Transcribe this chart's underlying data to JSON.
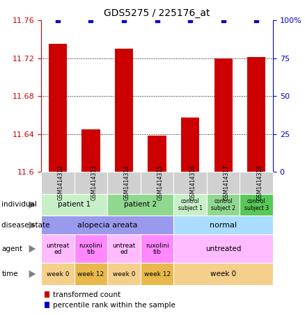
{
  "title": "GDS5275 / 225176_at",
  "samples": [
    "GSM1414312",
    "GSM1414313",
    "GSM1414314",
    "GSM1414315",
    "GSM1414316",
    "GSM1414317",
    "GSM1414318"
  ],
  "red_values": [
    11.735,
    11.645,
    11.73,
    11.638,
    11.657,
    11.72,
    11.721
  ],
  "blue_values": [
    100,
    100,
    100,
    100,
    100,
    100,
    100
  ],
  "ylim_left": [
    11.6,
    11.76
  ],
  "ylim_right": [
    0,
    100
  ],
  "yticks_left": [
    11.6,
    11.64,
    11.68,
    11.72,
    11.76
  ],
  "yticks_right": [
    0,
    25,
    50,
    75,
    100
  ],
  "ytick_labels_right": [
    "0",
    "25",
    "50",
    "75",
    "100%"
  ],
  "bar_color": "#cc0000",
  "dot_color": "#0000cc",
  "grid_values": [
    11.64,
    11.68,
    11.72
  ],
  "individual_data": [
    {
      "label": "patient 1",
      "span": [
        0,
        2
      ],
      "color": "#c8f0c8"
    },
    {
      "label": "patient 2",
      "span": [
        2,
        4
      ],
      "color": "#90d890"
    },
    {
      "label": "control\nsubject 1",
      "span": [
        4,
        5
      ],
      "color": "#c8f0c8"
    },
    {
      "label": "control\nsubject 2",
      "span": [
        5,
        6
      ],
      "color": "#90d890"
    },
    {
      "label": "control\nsubject 3",
      "span": [
        6,
        7
      ],
      "color": "#58c858"
    }
  ],
  "disease_data": [
    {
      "label": "alopecia areata",
      "span": [
        0,
        4
      ],
      "color": "#9999ee"
    },
    {
      "label": "normal",
      "span": [
        4,
        7
      ],
      "color": "#aaddff"
    }
  ],
  "agent_data": [
    {
      "label": "untreat\ned",
      "span": [
        0,
        1
      ],
      "color": "#ffbbff"
    },
    {
      "label": "ruxolini\ntib",
      "span": [
        1,
        2
      ],
      "color": "#ff88ff"
    },
    {
      "label": "untreat\ned",
      "span": [
        2,
        3
      ],
      "color": "#ffbbff"
    },
    {
      "label": "ruxolini\ntib",
      "span": [
        3,
        4
      ],
      "color": "#ff88ff"
    },
    {
      "label": "untreated",
      "span": [
        4,
        7
      ],
      "color": "#ffbbff"
    }
  ],
  "time_data": [
    {
      "label": "week 0",
      "span": [
        0,
        1
      ],
      "color": "#f5d08c"
    },
    {
      "label": "week 12",
      "span": [
        1,
        2
      ],
      "color": "#e8b84b"
    },
    {
      "label": "week 0",
      "span": [
        2,
        3
      ],
      "color": "#f5d08c"
    },
    {
      "label": "week 12",
      "span": [
        3,
        4
      ],
      "color": "#e8b84b"
    },
    {
      "label": "week 0",
      "span": [
        4,
        7
      ],
      "color": "#f5d08c"
    }
  ],
  "row_labels": [
    "individual",
    "disease state",
    "agent",
    "time"
  ],
  "row_label_ymids": [
    0.385,
    0.315,
    0.235,
    0.155
  ],
  "sample_color": "#d0d0d0",
  "legend_items": [
    {
      "label": "transformed count",
      "color": "#cc0000"
    },
    {
      "label": "percentile rank within the sample",
      "color": "#0000cc"
    }
  ]
}
